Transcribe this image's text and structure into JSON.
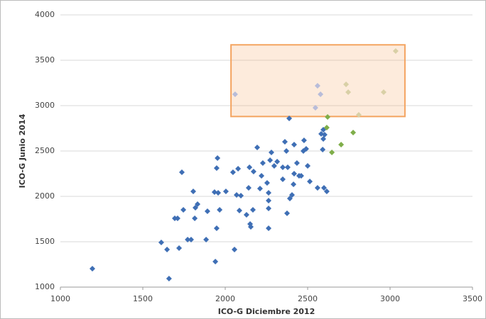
{
  "chart_data": {
    "type": "scatter",
    "x_label": "ICO-G Diciembre 2012",
    "y_label": "ICO-G Junio 2014",
    "xlim": [
      1000,
      3500
    ],
    "xticks": [
      1000,
      1500,
      2000,
      2500,
      3000,
      3500
    ],
    "ylim": [
      1000,
      4000
    ],
    "yticks": [
      1000,
      1500,
      2000,
      2500,
      3000,
      3500,
      4000
    ],
    "grid": true,
    "highlight": {
      "xlim": [
        2035,
        3090
      ],
      "ylim": [
        2880,
        3670
      ],
      "color": "#f4a460"
    },
    "series": [
      {
        "color": "#3f6fb5",
        "x": [
          1194,
          1612,
          1647,
          1659,
          1720,
          1694,
          1711,
          1737,
          1746,
          1772,
          1793,
          1806,
          1819,
          1832,
          1815,
          1884,
          1892,
          1935,
          1940,
          1948,
          1948,
          1953,
          1957,
          1966,
          2004,
          2047,
          2056,
          2069,
          2078,
          2086,
          2095,
          2129,
          2142,
          2147,
          2151,
          2155,
          2168,
          2172,
          2194,
          2211,
          2220,
          2228,
          2254,
          2263,
          2263,
          2263,
          2263,
          2272,
          2280,
          2297,
          2315,
          2349,
          2349,
          2362,
          2371,
          2375,
          2388,
          2379,
          2392,
          2405,
          2414,
          2418,
          2418,
          2435,
          2448,
          2461,
          2474,
          2478,
          2491,
          2500,
          2513,
          2560,
          2591,
          2582,
          2595,
          2603,
          2595,
          2599,
          2616
        ],
        "y": [
          1203,
          1492,
          1414,
          1094,
          1430,
          1758,
          1758,
          2266,
          1852,
          1523,
          1523,
          2055,
          1875,
          1914,
          1758,
          1523,
          1836,
          2047,
          1281,
          1648,
          2312,
          2422,
          2039,
          1852,
          2055,
          2266,
          1414,
          2016,
          2305,
          1844,
          2008,
          1797,
          2094,
          2320,
          1695,
          1664,
          1852,
          2273,
          2539,
          2086,
          2227,
          2367,
          2148,
          1953,
          1867,
          2039,
          1648,
          2398,
          2484,
          2336,
          2383,
          2188,
          2320,
          2602,
          2500,
          1813,
          2859,
          2320,
          1977,
          2016,
          2133,
          2250,
          2570,
          2367,
          2227,
          2227,
          2500,
          2617,
          2523,
          2336,
          2164,
          2094,
          2516,
          2688,
          2734,
          2680,
          2633,
          2094,
          2055
        ]
      },
      {
        "color": "#7fae4a",
        "x": [
          2616,
          2621,
          2647,
          2703,
          2776
        ],
        "y": [
          2758,
          2875,
          2484,
          2570,
          2703
        ]
      },
      {
        "color": "#b8bcd9",
        "x": [
          2060,
          2560,
          2578,
          2547
        ],
        "y": [
          3125,
          3219,
          3125,
          2977
        ]
      },
      {
        "color": "#d9d0a6",
        "x": [
          2733,
          2746,
          2810,
          2961,
          3034
        ],
        "y": [
          3234,
          3148,
          2898,
          3148,
          3602
        ]
      }
    ]
  }
}
